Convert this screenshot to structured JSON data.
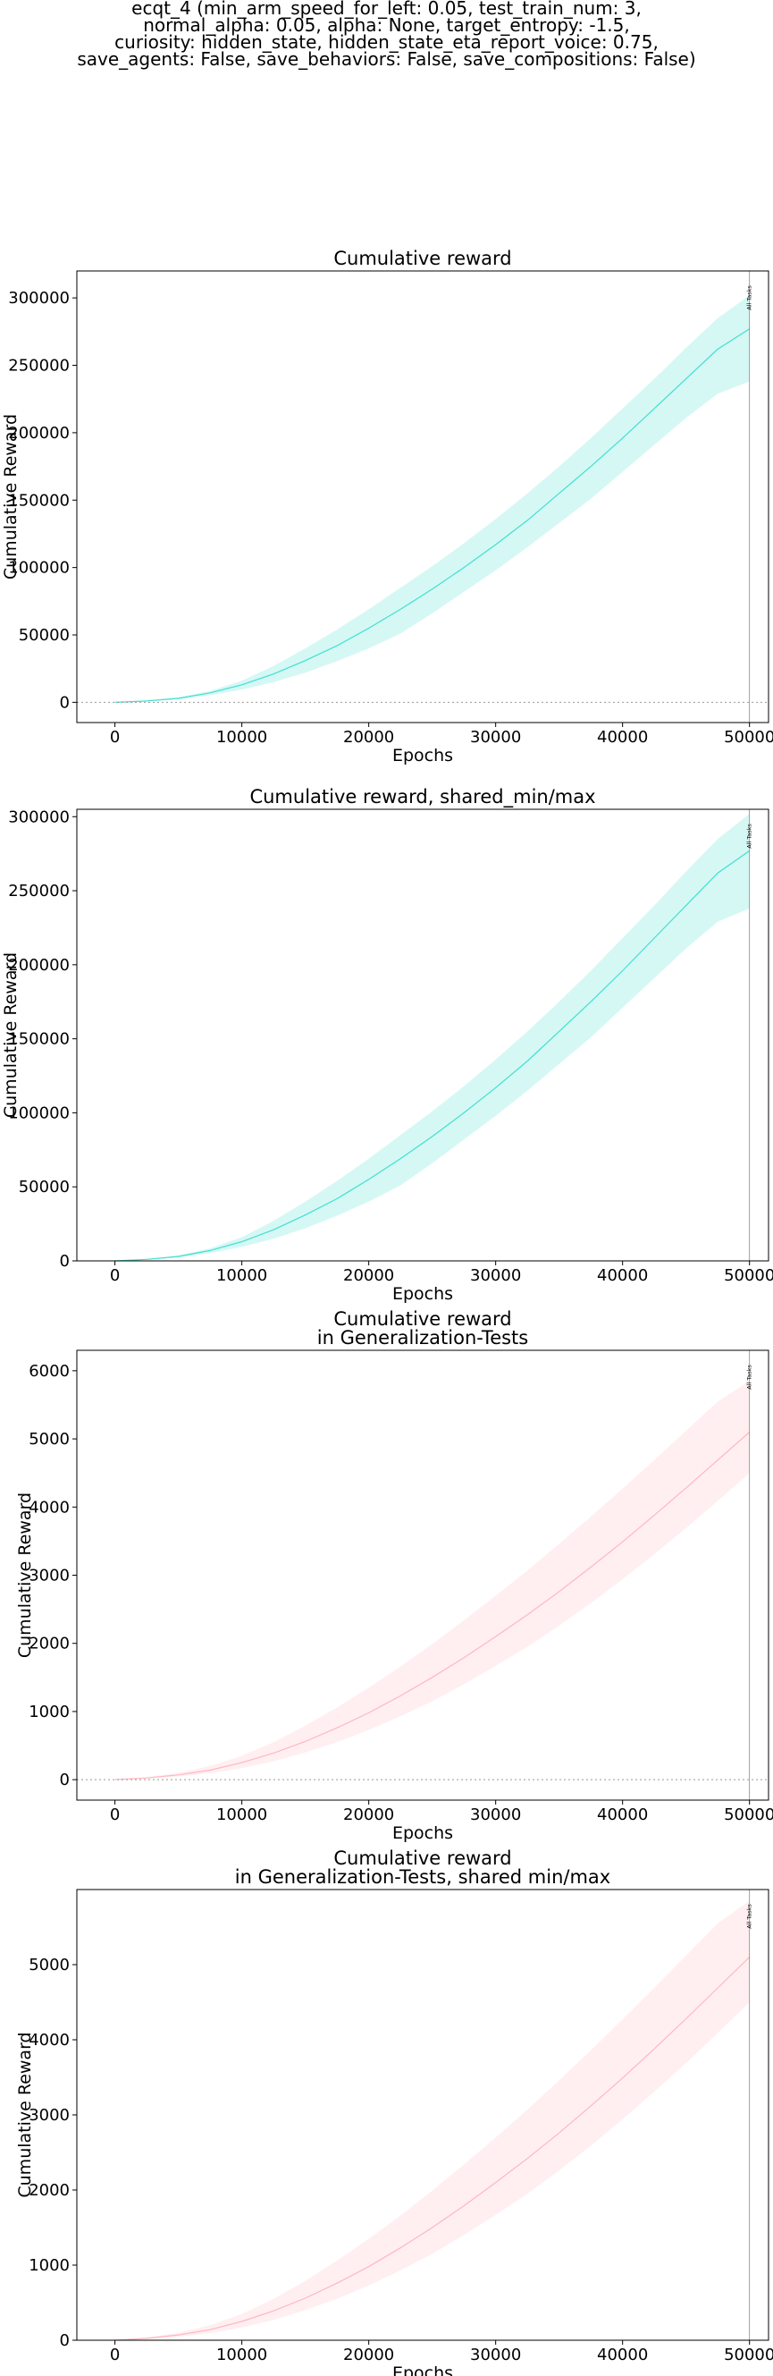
{
  "figure": {
    "suptitle": "ecqt_4 (min_arm_speed_for_left: 0.05, test_train_num: 3,\nnormal_alpha: 0.05, alpha: None, target_entropy: -1.5,\ncuriosity: hidden_state, hidden_state_eta_report_voice: 0.75,\nsave_agents: False, save_behaviors: False, save_compositions: False)"
  },
  "chart_data": [
    {
      "type": "line",
      "title": "Cumulative reward",
      "xlabel": "Epochs",
      "ylabel": "Cumulative Reward",
      "xlim": [
        -3000,
        51500
      ],
      "ylim": [
        -15000,
        320000
      ],
      "xticks": [
        0,
        10000,
        20000,
        30000,
        40000,
        50000
      ],
      "yticks": [
        0,
        50000,
        100000,
        150000,
        200000,
        250000,
        300000
      ],
      "zero_line": true,
      "grid": false,
      "color": "#40E0D0",
      "vline": {
        "x": 50000,
        "label": "All Tasks"
      },
      "series": [
        {
          "x": [
            0,
            2500,
            5000,
            7500,
            10000,
            12500,
            15000,
            17500,
            20000,
            22500,
            25000,
            27500,
            30000,
            32500,
            35000,
            37500,
            40000,
            42500,
            45000,
            47500,
            50000
          ],
          "mean": [
            0,
            1000,
            3000,
            7000,
            13000,
            21000,
            31000,
            42000,
            55000,
            69000,
            84000,
            100000,
            117000,
            135000,
            155000,
            175000,
            196000,
            218000,
            240000,
            262000,
            277000
          ],
          "min": [
            0,
            700,
            2200,
            5200,
            9500,
            15000,
            22000,
            30500,
            40000,
            51000,
            66000,
            82000,
            98000,
            115000,
            133000,
            151000,
            171000,
            191000,
            211000,
            229000,
            238000
          ],
          "max": [
            0,
            1200,
            3600,
            8500,
            16000,
            27000,
            40000,
            54000,
            69000,
            85000,
            101000,
            118000,
            136000,
            155000,
            175000,
            196000,
            218000,
            240000,
            263000,
            285000,
            302000
          ]
        }
      ]
    },
    {
      "type": "line",
      "title": "Cumulative reward, shared_min/max",
      "xlabel": "Epochs",
      "ylabel": "Cumulative Reward",
      "xlim": [
        -3000,
        51500
      ],
      "ylim": [
        0,
        305000
      ],
      "xticks": [
        0,
        10000,
        20000,
        30000,
        40000,
        50000
      ],
      "yticks": [
        0,
        50000,
        100000,
        150000,
        200000,
        250000,
        300000
      ],
      "zero_line": false,
      "grid": false,
      "color": "#40E0D0",
      "vline": {
        "x": 50000,
        "label": "All Tasks"
      },
      "series": [
        {
          "x": [
            0,
            2500,
            5000,
            7500,
            10000,
            12500,
            15000,
            17500,
            20000,
            22500,
            25000,
            27500,
            30000,
            32500,
            35000,
            37500,
            40000,
            42500,
            45000,
            47500,
            50000
          ],
          "mean": [
            0,
            1000,
            3000,
            7000,
            13000,
            21000,
            31000,
            42000,
            55000,
            69000,
            84000,
            100000,
            117000,
            135000,
            155000,
            175000,
            196000,
            218000,
            240000,
            262000,
            277000
          ],
          "min": [
            0,
            700,
            2200,
            5200,
            9500,
            15000,
            22000,
            30500,
            40000,
            51000,
            66000,
            82000,
            98000,
            115000,
            133000,
            151000,
            171000,
            191000,
            211000,
            229000,
            238000
          ],
          "max": [
            0,
            1200,
            3600,
            8500,
            16000,
            27000,
            40000,
            54000,
            69000,
            85000,
            101000,
            118000,
            136000,
            155000,
            175000,
            196000,
            218000,
            240000,
            263000,
            285000,
            302000
          ]
        }
      ]
    },
    {
      "type": "line",
      "title": "Cumulative reward\nin Generalization-Tests",
      "xlabel": "Epochs",
      "ylabel": "Cumulative Reward",
      "xlim": [
        -3000,
        51500
      ],
      "ylim": [
        -300,
        6300
      ],
      "xticks": [
        0,
        10000,
        20000,
        30000,
        40000,
        50000
      ],
      "yticks": [
        0,
        1000,
        2000,
        3000,
        4000,
        5000,
        6000
      ],
      "zero_line": true,
      "grid": false,
      "color": "#FFB6C1",
      "vline": {
        "x": 50000,
        "label": "All Tasks"
      },
      "series": [
        {
          "x": [
            0,
            2500,
            5000,
            7500,
            10000,
            12500,
            15000,
            17500,
            20000,
            22500,
            25000,
            27500,
            30000,
            32500,
            35000,
            37500,
            40000,
            42500,
            45000,
            47500,
            50000
          ],
          "mean": [
            0,
            25,
            70,
            140,
            250,
            390,
            560,
            760,
            980,
            1230,
            1500,
            1790,
            2100,
            2420,
            2760,
            3120,
            3490,
            3880,
            4280,
            4690,
            5100
          ],
          "min": [
            0,
            15,
            45,
            95,
            170,
            270,
            400,
            550,
            730,
            930,
            1150,
            1400,
            1670,
            1950,
            2260,
            2590,
            2940,
            3310,
            3690,
            4090,
            4500
          ],
          "max": [
            0,
            35,
            100,
            200,
            350,
            550,
            790,
            1060,
            1350,
            1660,
            1990,
            2340,
            2700,
            3070,
            3460,
            3860,
            4270,
            4690,
            5120,
            5550,
            5850
          ]
        }
      ]
    },
    {
      "type": "line",
      "title": "Cumulative reward\nin Generalization-Tests, shared min/max",
      "xlabel": "Epochs",
      "ylabel": "Cumulative Reward",
      "xlim": [
        -3000,
        51500
      ],
      "ylim": [
        0,
        6000
      ],
      "xticks": [
        0,
        10000,
        20000,
        30000,
        40000,
        50000
      ],
      "yticks": [
        0,
        1000,
        2000,
        3000,
        4000,
        5000
      ],
      "zero_line": false,
      "grid": false,
      "color": "#FFB6C1",
      "vline": {
        "x": 50000,
        "label": "All Tasks"
      },
      "series": [
        {
          "x": [
            0,
            2500,
            5000,
            7500,
            10000,
            12500,
            15000,
            17500,
            20000,
            22500,
            25000,
            27500,
            30000,
            32500,
            35000,
            37500,
            40000,
            42500,
            45000,
            47500,
            50000
          ],
          "mean": [
            0,
            25,
            70,
            140,
            250,
            390,
            560,
            760,
            980,
            1230,
            1500,
            1790,
            2100,
            2420,
            2760,
            3120,
            3490,
            3880,
            4280,
            4690,
            5100
          ],
          "min": [
            0,
            15,
            45,
            95,
            170,
            270,
            400,
            550,
            730,
            930,
            1150,
            1400,
            1670,
            1950,
            2260,
            2590,
            2940,
            3310,
            3690,
            4090,
            4500
          ],
          "max": [
            0,
            35,
            100,
            200,
            350,
            550,
            790,
            1060,
            1350,
            1660,
            1990,
            2340,
            2700,
            3070,
            3460,
            3860,
            4270,
            4690,
            5120,
            5550,
            5850
          ]
        }
      ]
    }
  ]
}
